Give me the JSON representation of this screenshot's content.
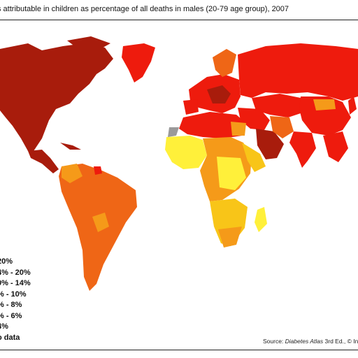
{
  "title": "s attributable in children as percentage of all deaths in males (20-79 age group), 2007",
  "legend": {
    "items": [
      {
        "label": "20%",
        "color": "#a81c0c"
      },
      {
        "label": "4% - 20%",
        "color": "#ee1b0d"
      },
      {
        "label": "0% - 14%",
        "color": "#ef6616"
      },
      {
        "label": "% - 10%",
        "color": "#f59a19"
      },
      {
        "label": "% - 8%",
        "color": "#f8c518"
      },
      {
        "label": "% - 6%",
        "color": "#fff03a"
      },
      {
        "label": "4%",
        "color": "#fff7a0"
      },
      {
        "label": "o data",
        "color": "#9a9a9a"
      }
    ]
  },
  "source": {
    "prefix": "Source: ",
    "italic": "Diabetes Atlas",
    "suffix": " 3rd Ed., © Int"
  },
  "colors": {
    "na": "#a81c0c",
    "russia": "#ee1b0d",
    "southamerica": "#ef6616",
    "africa_north": "#ee1b0d",
    "africa_central": "#fff03a",
    "africa_mid": "#f59a19",
    "greenland": "#ee1b0d",
    "gulf": "#a81c0c"
  }
}
